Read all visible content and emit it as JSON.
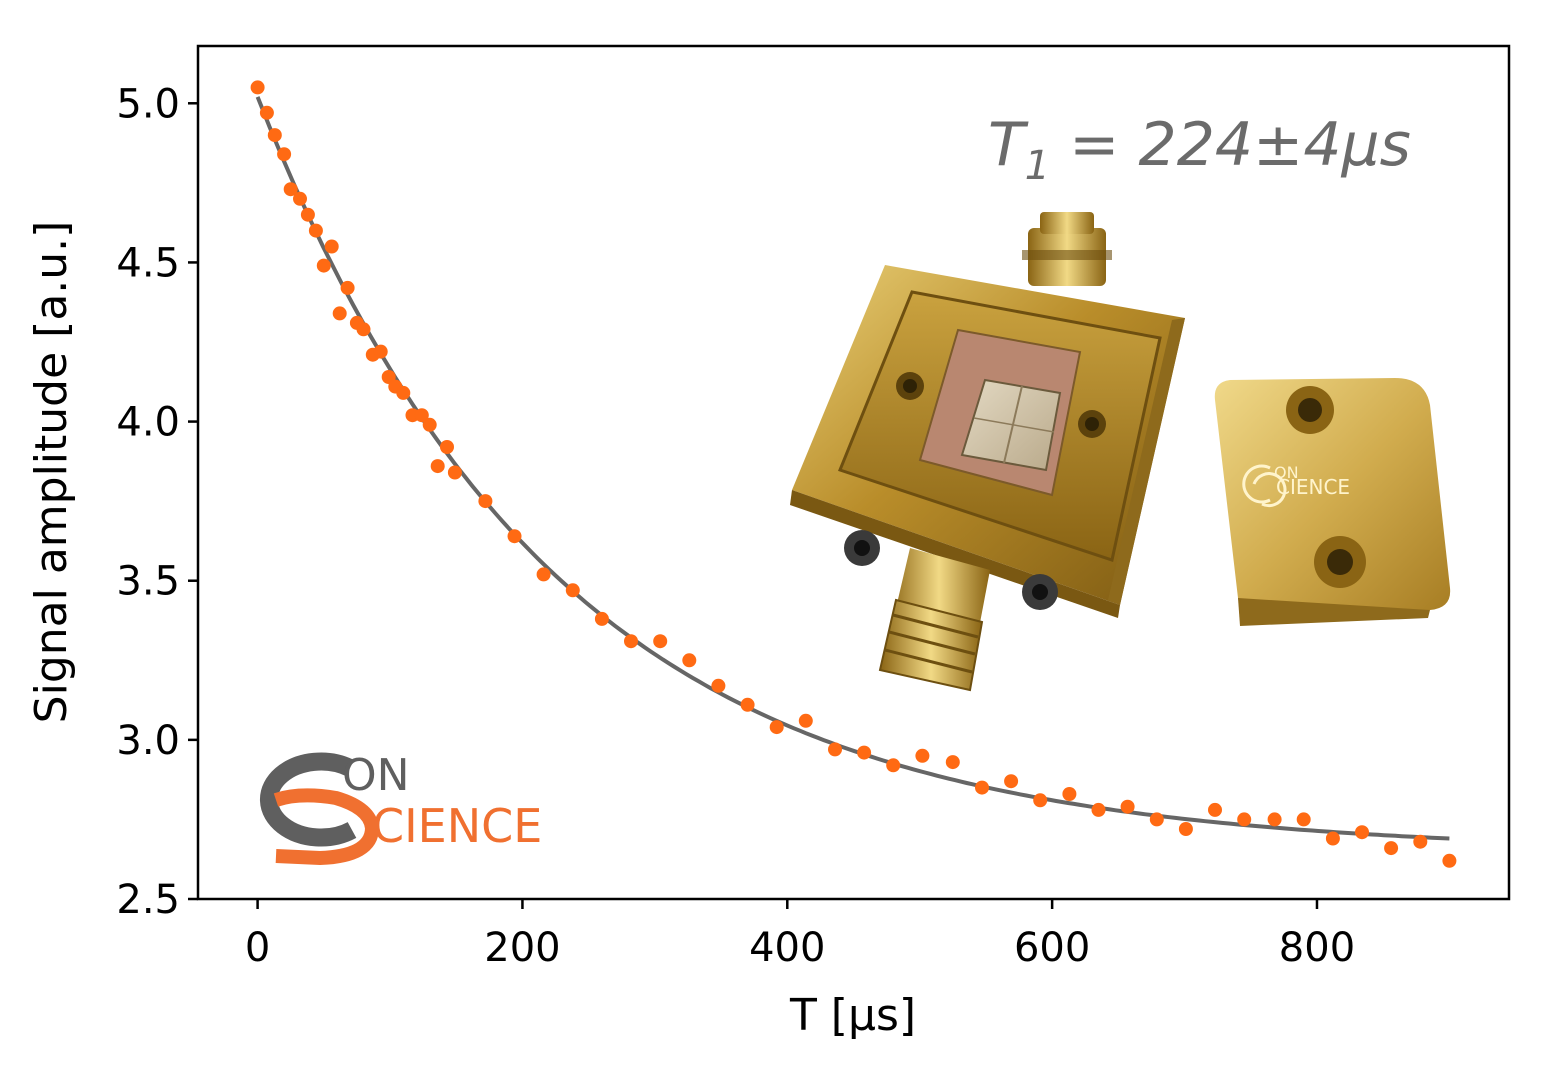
{
  "chart_data": {
    "type": "scatter",
    "xlabel": "T [μs]",
    "ylabel": "Signal amplitude [a.u.]",
    "xlim": [
      -45,
      945
    ],
    "ylim": [
      2.5,
      5.18
    ],
    "xticks": [
      0,
      200,
      400,
      600,
      800
    ],
    "yticks": [
      2.5,
      3.0,
      3.5,
      4.0,
      4.5,
      5.0
    ],
    "xtick_labels": [
      "0",
      "200",
      "400",
      "600",
      "800"
    ],
    "ytick_labels": [
      "2.5",
      "3.0",
      "3.5",
      "4.0",
      "4.5",
      "5.0"
    ],
    "grid": false,
    "annotation": {
      "text_main": "T",
      "text_sub": "1",
      "text_rest": " = 224±4μs"
    },
    "colors": {
      "points": "#ff6a13",
      "fit": "#666666",
      "annotation": "#6b6b6b",
      "logo_gray": "#5f5f5f",
      "logo_orange": "#f07030"
    },
    "fit": {
      "model": "exponential decay",
      "T1": 224,
      "T1_err": 4,
      "x_range": [
        0,
        900
      ],
      "y_start": 5.02,
      "y_end": 2.69
    },
    "series": [
      {
        "values": [
          [
            0,
            5.05
          ],
          [
            7,
            4.97
          ],
          [
            13,
            4.9
          ],
          [
            20,
            4.84
          ],
          [
            25,
            4.73
          ],
          [
            32,
            4.7
          ],
          [
            38,
            4.65
          ],
          [
            44,
            4.6
          ],
          [
            50,
            4.49
          ],
          [
            56,
            4.55
          ],
          [
            62,
            4.34
          ],
          [
            68,
            4.42
          ],
          [
            75,
            4.31
          ],
          [
            80,
            4.29
          ],
          [
            87,
            4.21
          ],
          [
            93,
            4.22
          ],
          [
            99,
            4.14
          ],
          [
            104,
            4.11
          ],
          [
            110,
            4.09
          ],
          [
            117,
            4.02
          ],
          [
            124,
            4.02
          ],
          [
            130,
            3.99
          ],
          [
            136,
            3.86
          ],
          [
            143,
            3.92
          ],
          [
            149,
            3.84
          ],
          [
            172,
            3.75
          ],
          [
            194,
            3.64
          ],
          [
            216,
            3.52
          ],
          [
            238,
            3.47
          ],
          [
            260,
            3.38
          ],
          [
            282,
            3.31
          ],
          [
            304,
            3.31
          ],
          [
            326,
            3.25
          ],
          [
            348,
            3.17
          ],
          [
            370,
            3.11
          ],
          [
            392,
            3.04
          ],
          [
            414,
            3.06
          ],
          [
            436,
            2.97
          ],
          [
            458,
            2.96
          ],
          [
            480,
            2.92
          ],
          [
            502,
            2.95
          ],
          [
            525,
            2.93
          ],
          [
            547,
            2.85
          ],
          [
            569,
            2.87
          ],
          [
            591,
            2.81
          ],
          [
            613,
            2.83
          ],
          [
            635,
            2.78
          ],
          [
            657,
            2.79
          ],
          [
            679,
            2.75
          ],
          [
            701,
            2.72
          ],
          [
            723,
            2.78
          ],
          [
            745,
            2.75
          ],
          [
            768,
            2.75
          ],
          [
            790,
            2.75
          ],
          [
            812,
            2.69
          ],
          [
            834,
            2.71
          ],
          [
            856,
            2.66
          ],
          [
            878,
            2.68
          ],
          [
            900,
            2.62
          ]
        ]
      }
    ]
  },
  "logo": {
    "letters_top": "ON",
    "letters_bottom": "CIENCE"
  },
  "photo": {
    "engraving_top": "ON",
    "engraving_bottom": "CIENCE"
  }
}
